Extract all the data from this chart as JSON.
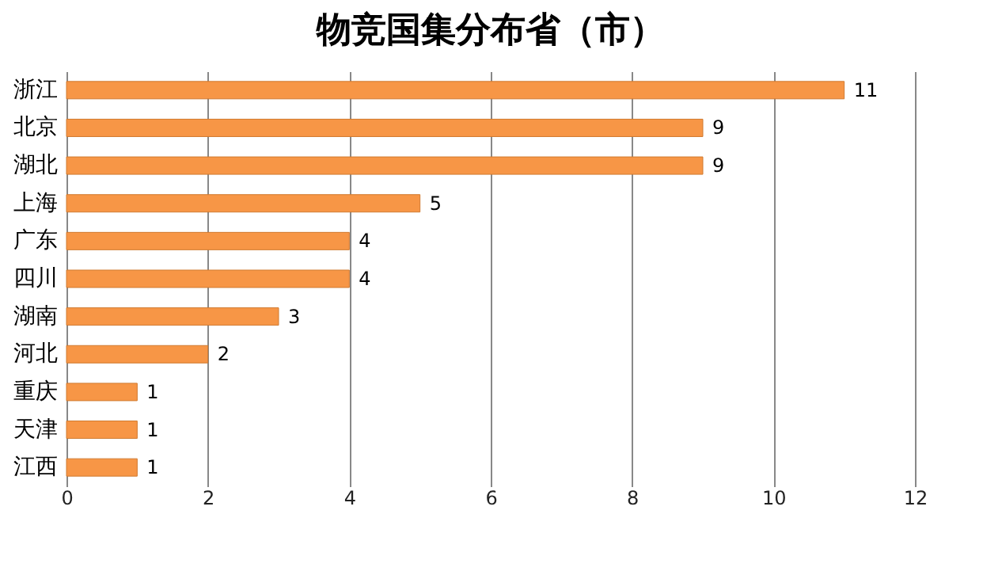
{
  "chart_data": {
    "type": "bar",
    "orientation": "horizontal",
    "title": "物竞国集分布省（市）",
    "categories": [
      "浙江",
      "北京",
      "湖北",
      "上海",
      "广东",
      "四川",
      "湖南",
      "河北",
      "重庆",
      "天津",
      "江西"
    ],
    "values": [
      11,
      9,
      9,
      5,
      4,
      4,
      3,
      2,
      1,
      1,
      1
    ],
    "color": "#f79646",
    "xlim": [
      0,
      12
    ],
    "xticks": [
      0,
      2,
      4,
      6,
      8,
      10,
      12
    ],
    "grid": "x",
    "data_labels": true
  }
}
